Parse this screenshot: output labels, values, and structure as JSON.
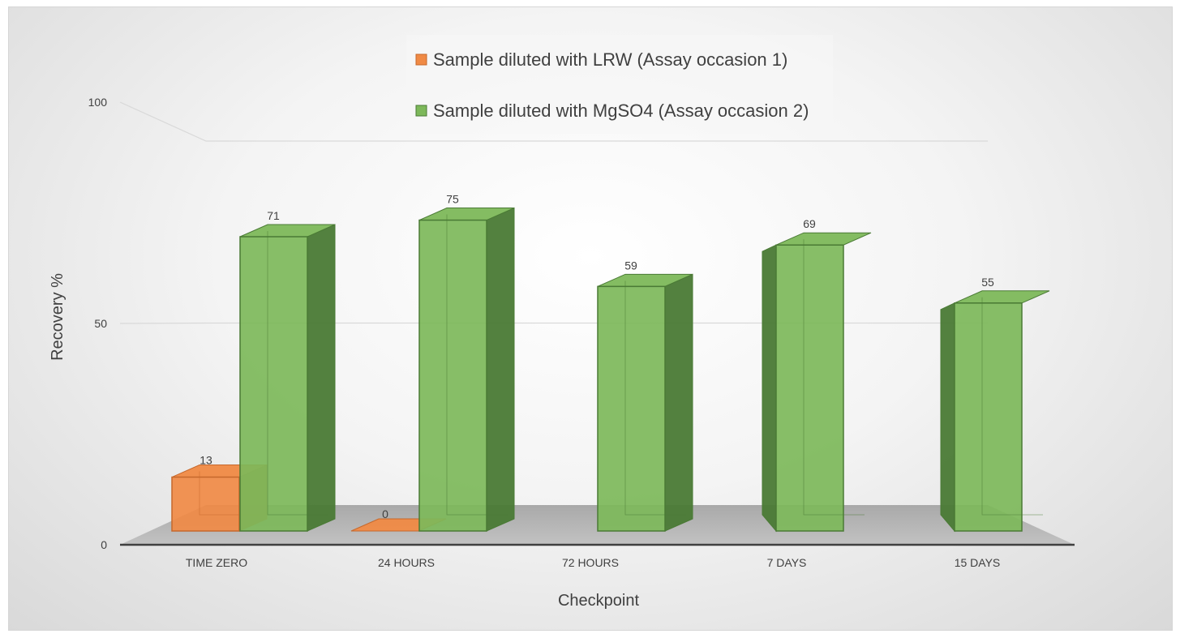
{
  "chart_data": {
    "type": "bar",
    "title": "",
    "xlabel": "Checkpoint",
    "ylabel": "Recovery %",
    "ylim": [
      0,
      100
    ],
    "yticks": [
      0,
      50,
      100
    ],
    "categories": [
      "TIME ZERO",
      "24 HOURS",
      "72 HOURS",
      "7 DAYS",
      "15 DAYS"
    ],
    "series": [
      {
        "name": "Sample diluted with LRW (Assay occasion 1)",
        "values": [
          13,
          0,
          null,
          null,
          null
        ],
        "color": "#F08A45",
        "side_color": "#C6682C"
      },
      {
        "name": "Sample diluted with MgSO4 (Assay occasion 2)",
        "values": [
          71,
          75,
          59,
          69,
          55
        ],
        "color": "#7DB85A",
        "side_color": "#4A7A35"
      }
    ],
    "grid": true,
    "legend_position": "top",
    "style": "3d-clustered-column"
  }
}
